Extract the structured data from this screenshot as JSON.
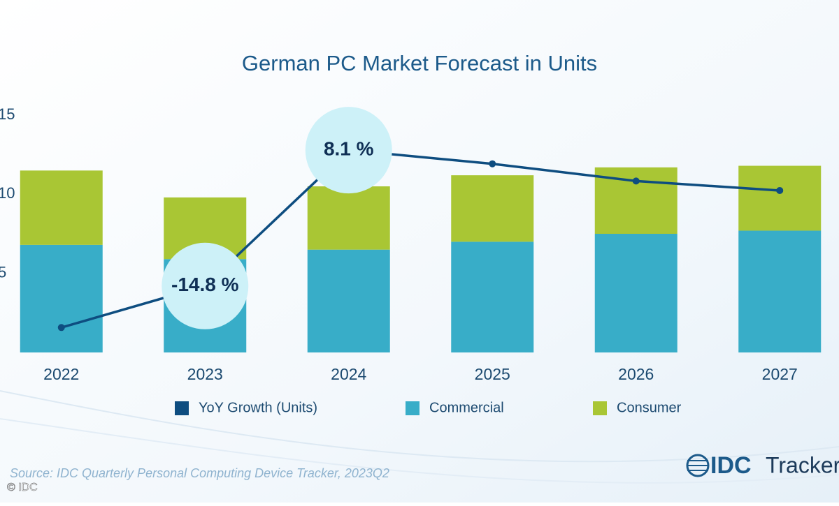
{
  "chart_data": {
    "type": "bar",
    "title": "German PC Market Forecast in Units",
    "categories": [
      "2022",
      "2023",
      "2024",
      "2025",
      "2026",
      "2027"
    ],
    "stacked": true,
    "series": [
      {
        "name": "YoY Growth (Units)",
        "type": "line",
        "axis": "y2",
        "color": "#0e4d80",
        "values": [
          -21.8,
          -14.8,
          8.1,
          5.8,
          2.9,
          1.3
        ],
        "value_labels": [
          null,
          "-14.8 %",
          "8.1 %",
          null,
          null,
          null
        ]
      },
      {
        "name": "Commercial",
        "color": "#38adc8",
        "values": [
          6.8,
          5.9,
          6.5,
          7.0,
          7.5,
          7.7
        ]
      },
      {
        "name": "Consumer",
        "color": "#a9c634",
        "values": [
          4.7,
          3.9,
          4.0,
          4.2,
          4.2,
          4.1
        ]
      }
    ],
    "ylim": [
      0,
      15
    ],
    "yticks": [
      5,
      10,
      15
    ],
    "y2lim": [
      -26,
      14
    ],
    "source": "Source: IDC Quarterly Personal Computing Device Tracker, 2023Q2",
    "logo": "IDC",
    "logo_suffix": "Tracker",
    "copyright": "© IDC"
  }
}
